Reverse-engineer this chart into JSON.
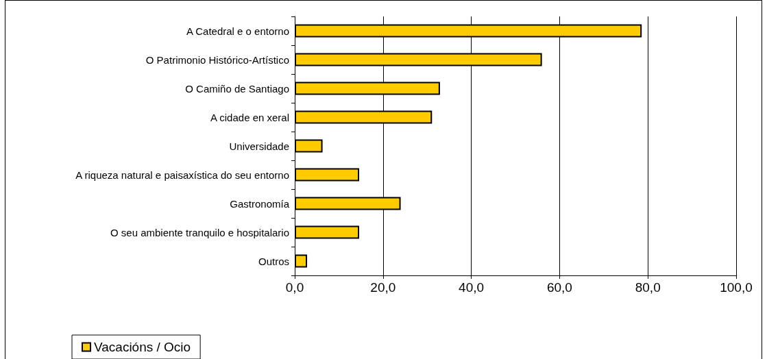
{
  "chart_data": {
    "type": "bar",
    "orientation": "horizontal",
    "categories": [
      "A Catedral e o entorno",
      "O Patrimonio Histórico-Artístico",
      "O Camiño de Santiago",
      "A cidade en xeral",
      "Universidade",
      "A riqueza natural e paisaxística do seu entorno",
      "Gastronomía",
      "O seu ambiente tranquilo e hospitalario",
      "Outros"
    ],
    "series": [
      {
        "name": "Vacacións / Ocio",
        "color": "#ffcc00",
        "values": [
          78.6,
          56.0,
          32.9,
          31.1,
          6.3,
          14.6,
          24.0,
          14.6,
          2.8
        ]
      }
    ],
    "xlim": [
      0,
      100
    ],
    "xticks": [
      {
        "value": 0,
        "label": "0,0"
      },
      {
        "value": 20,
        "label": "20,0"
      },
      {
        "value": 40,
        "label": "40,0"
      },
      {
        "value": 60,
        "label": "60,0"
      },
      {
        "value": 80,
        "label": "80,0"
      },
      {
        "value": 100,
        "label": "100,0"
      }
    ],
    "grid": "x",
    "legend": "bottom left"
  }
}
